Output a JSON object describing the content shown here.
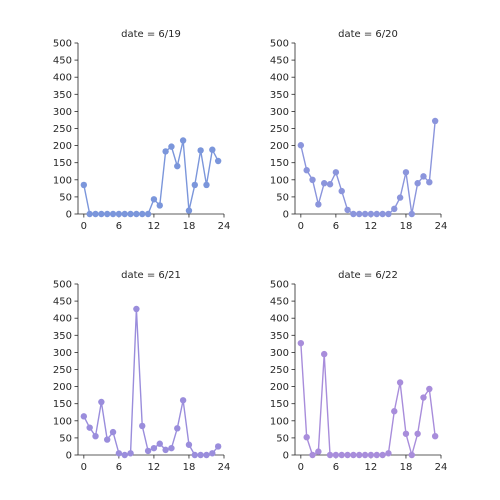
{
  "chart_data": [
    {
      "type": "line",
      "title": "date = 6/19",
      "x": [
        0,
        1,
        2,
        3,
        4,
        5,
        6,
        7,
        8,
        9,
        10,
        11,
        12,
        13,
        14,
        15,
        16,
        17,
        18,
        19,
        20,
        21,
        22,
        23
      ],
      "y": [
        85,
        0,
        0,
        0,
        0,
        0,
        0,
        0,
        0,
        0,
        0,
        0,
        43,
        25,
        183,
        197,
        140,
        215,
        10,
        85,
        186,
        85,
        188,
        155
      ],
      "xlim": [
        -1,
        24
      ],
      "ylim": [
        0,
        500
      ],
      "xticks": [
        0,
        6,
        12,
        18,
        24
      ],
      "yticks": [
        0,
        50,
        100,
        150,
        200,
        250,
        300,
        350,
        400,
        450,
        500
      ],
      "color": "#7b96db"
    },
    {
      "type": "line",
      "title": "date = 6/20",
      "x": [
        0,
        1,
        2,
        3,
        4,
        5,
        6,
        7,
        8,
        9,
        10,
        11,
        12,
        13,
        14,
        15,
        16,
        17,
        18,
        19,
        20,
        21,
        22,
        23
      ],
      "y": [
        201,
        128,
        100,
        28,
        90,
        87,
        122,
        67,
        12,
        0,
        0,
        0,
        0,
        0,
        0,
        0,
        15,
        48,
        122,
        0,
        90,
        110,
        93,
        272
      ],
      "xlim": [
        -1,
        24
      ],
      "ylim": [
        0,
        500
      ],
      "xticks": [
        0,
        6,
        12,
        18,
        24
      ],
      "yticks": [
        0,
        50,
        100,
        150,
        200,
        250,
        300,
        350,
        400,
        450,
        500
      ],
      "color": "#8b95dc"
    },
    {
      "type": "line",
      "title": "date = 6/21",
      "x": [
        0,
        1,
        2,
        3,
        4,
        5,
        6,
        7,
        8,
        9,
        10,
        11,
        12,
        13,
        14,
        15,
        16,
        17,
        18,
        19,
        20,
        21,
        22,
        23
      ],
      "y": [
        113,
        80,
        55,
        155,
        45,
        67,
        5,
        0,
        5,
        427,
        85,
        12,
        20,
        33,
        15,
        20,
        78,
        160,
        30,
        0,
        0,
        0,
        5,
        25
      ],
      "xlim": [
        -1,
        24
      ],
      "ylim": [
        0,
        500
      ],
      "xticks": [
        0,
        6,
        12,
        18,
        24
      ],
      "yticks": [
        0,
        50,
        100,
        150,
        200,
        250,
        300,
        350,
        400,
        450,
        500
      ],
      "color": "#9a8ddc"
    },
    {
      "type": "line",
      "title": "date = 6/22",
      "x": [
        0,
        1,
        2,
        3,
        4,
        5,
        6,
        7,
        8,
        9,
        10,
        11,
        12,
        13,
        14,
        15,
        16,
        17,
        18,
        19,
        20,
        21,
        22,
        23
      ],
      "y": [
        327,
        52,
        0,
        10,
        295,
        0,
        0,
        0,
        0,
        0,
        0,
        0,
        0,
        0,
        0,
        5,
        128,
        212,
        62,
        0,
        62,
        168,
        193,
        55
      ],
      "xlim": [
        -1,
        24
      ],
      "ylim": [
        0,
        500
      ],
      "xticks": [
        0,
        6,
        12,
        18,
        24
      ],
      "yticks": [
        0,
        50,
        100,
        150,
        200,
        250,
        300,
        350,
        400,
        450,
        500
      ],
      "color": "#a88ddb"
    }
  ]
}
